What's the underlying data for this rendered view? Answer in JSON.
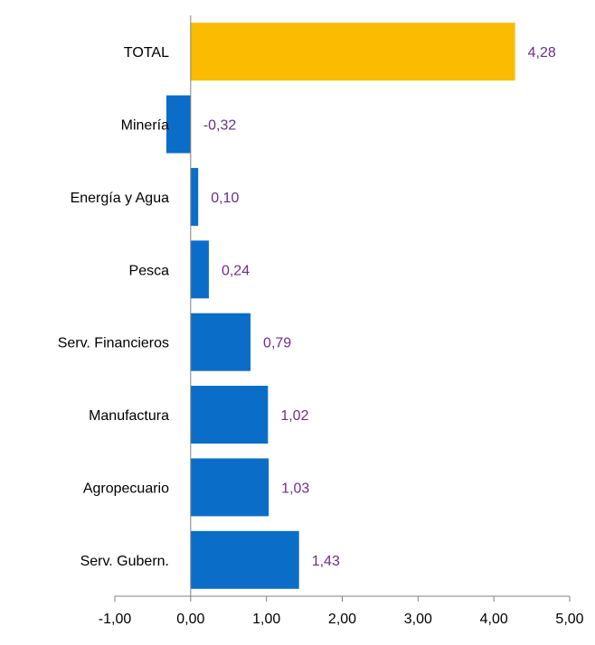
{
  "chart_data": {
    "type": "bar",
    "orientation": "horizontal",
    "categories": [
      "TOTAL",
      "Minería",
      "Energía y Agua",
      "Pesca",
      "Serv. Financieros",
      "Manufactura",
      "Agropecuario",
      "Serv. Gubern."
    ],
    "values": [
      4.28,
      -0.32,
      0.1,
      0.24,
      0.79,
      1.02,
      1.03,
      1.43
    ],
    "value_labels": [
      "4,28",
      "-0,32",
      "0,10",
      "0,24",
      "0,79",
      "1,02",
      "1,03",
      "1,43"
    ],
    "highlight_category": "TOTAL",
    "xlim": [
      -1,
      5
    ],
    "xticks": [
      -1,
      0,
      1,
      2,
      3,
      4,
      5
    ],
    "xtick_labels": [
      "-1,00",
      "0,00",
      "1,00",
      "2,00",
      "3,00",
      "4,00",
      "5,00"
    ],
    "title": "",
    "xlabel": "",
    "ylabel": "",
    "grid": false,
    "legend": "none"
  },
  "colors": {
    "bar": "#0a6ec8",
    "highlight": "#fbbb00",
    "value_label": "#6a2e8f",
    "axis": "#808080"
  }
}
